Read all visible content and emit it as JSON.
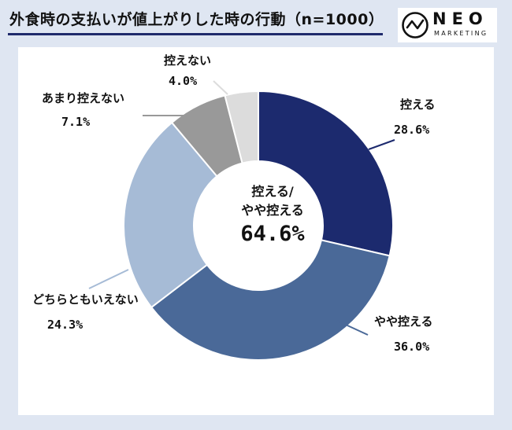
{
  "header": {
    "title": "外食時の支払いが値上がりした時の行動（n=1000）"
  },
  "logo": {
    "word": "NEO",
    "sub": "MARKETING"
  },
  "chart_data": {
    "type": "pie",
    "title": "外食時の支払いが値上がりした時の行動（n=1000）",
    "donut": true,
    "slices": [
      {
        "label": "控える",
        "value": 28.6,
        "display": "28.6%",
        "color": "#1c2a6e"
      },
      {
        "label": "やや控える",
        "value": 36.0,
        "display": "36.0%",
        "color": "#4a6998"
      },
      {
        "label": "どちらともいえない",
        "value": 24.3,
        "display": "24.3%",
        "color": "#a6bbd6"
      },
      {
        "label": "あまり控えない",
        "value": 7.1,
        "display": "7.1%",
        "color": "#999999"
      },
      {
        "label": "控えない",
        "value": 4.0,
        "display": "4.0%",
        "color": "#dcdcdc"
      }
    ],
    "center": {
      "label_line1": "控える/",
      "label_line2": "やや控える",
      "value": "64.6%"
    }
  }
}
